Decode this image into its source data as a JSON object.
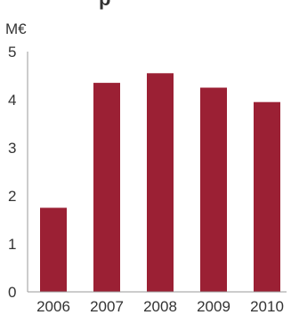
{
  "chart_data": {
    "type": "bar",
    "unit_label": "M€",
    "categories": [
      "2006",
      "2007",
      "2008",
      "2009",
      "2010"
    ],
    "values": [
      1.75,
      4.35,
      4.55,
      4.25,
      3.95
    ],
    "ylim": [
      0,
      5
    ],
    "yticks": [
      "0",
      "1",
      "2",
      "3",
      "4",
      "5"
    ],
    "grid": false,
    "bar_color": "#9b2034",
    "axis_color": "#9a9a9a"
  }
}
